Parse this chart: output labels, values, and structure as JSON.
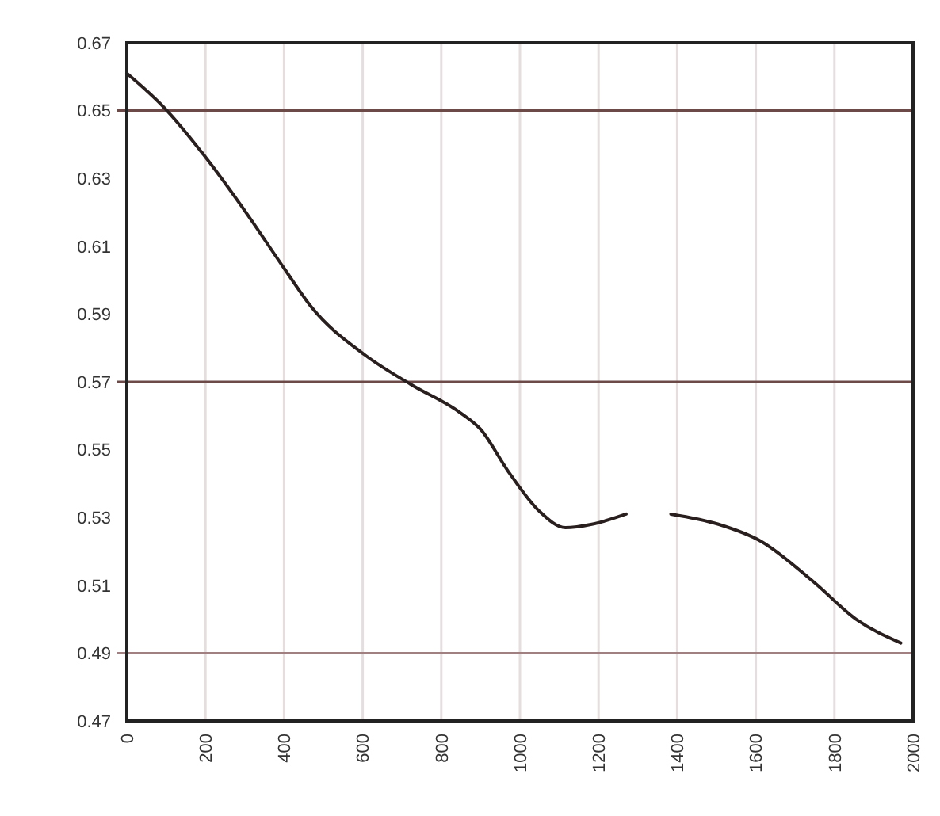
{
  "chart_data": {
    "type": "line",
    "x": [
      0,
      94,
      202,
      309,
      403,
      470,
      605,
      726,
      847,
      900,
      968,
      1048,
      1116,
      1183,
      1270,
      1330,
      1384,
      1505,
      1613,
      1747,
      1855,
      1969
    ],
    "series": [
      {
        "color": "#2a1f1f",
        "values": [
          0.661,
          0.651,
          0.636,
          0.619,
          0.603,
          0.592,
          0.578,
          0.569,
          0.561,
          0.556,
          0.544,
          0.532,
          0.527,
          0.528,
          0.531,
          null,
          0.531,
          0.528,
          0.523,
          0.511,
          0.5,
          0.493
        ]
      }
    ],
    "xlim": [
      0,
      2000
    ],
    "xticks": [
      0,
      200,
      400,
      600,
      800,
      1000,
      1200,
      1400,
      1600,
      1800,
      2000
    ],
    "ylim": [
      0.47,
      0.67
    ],
    "yticks": [
      0.67,
      0.65,
      0.63,
      0.61,
      0.59,
      0.57,
      0.55,
      0.53,
      0.51,
      0.49,
      0.47
    ],
    "grid": "x",
    "marker": "none",
    "line_style": "solid",
    "ref_lines": [
      {
        "axis": "y",
        "value": 0.65,
        "color": "#6b4a48"
      },
      {
        "axis": "y",
        "value": 0.57,
        "color": "#6b4a48"
      },
      {
        "axis": "y",
        "value": 0.49,
        "color": "#a08080"
      }
    ]
  }
}
